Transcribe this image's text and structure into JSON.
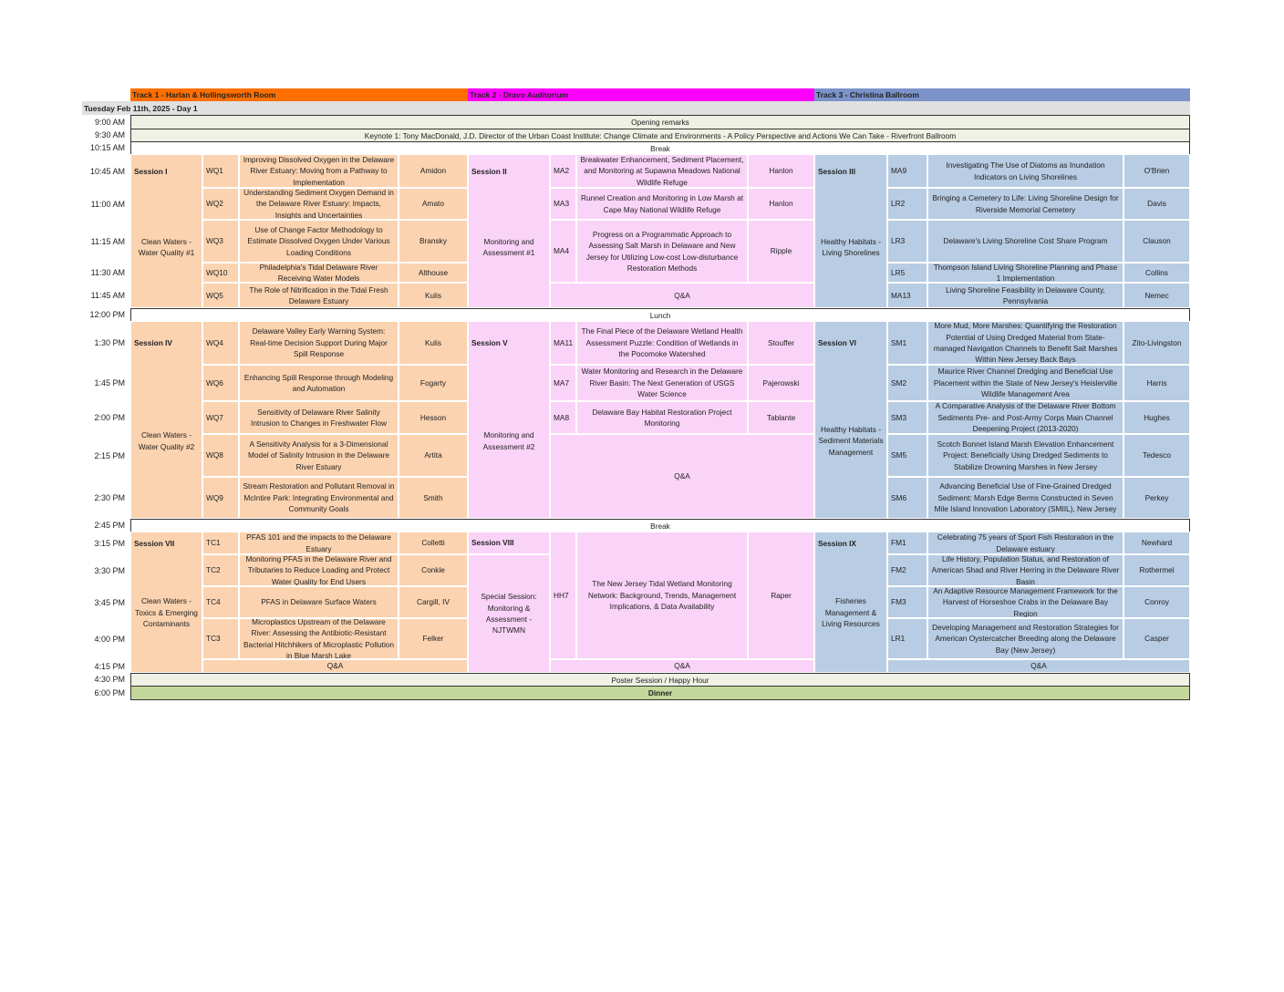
{
  "tracks": [
    {
      "label": "Track 1 - Harlan & Hollingsworth Room",
      "color": "#ff6f00"
    },
    {
      "label": "Track 2  - Dravo Auditorium",
      "color": "#ff00ff"
    },
    {
      "label": "Track 3 - Christina Ballroom",
      "color": "#7b93c9"
    }
  ],
  "day_label": "Tuesday Feb 11th, 2025 - Day 1",
  "times": [
    "9:00 AM",
    "9:30 AM",
    "10:15 AM",
    "10:45 AM",
    "11:00 AM",
    "11:15 AM",
    "11:30 AM",
    "11:45 AM",
    "12:00 PM",
    "1:30 PM",
    "1:45 PM",
    "2:00 PM",
    "2:15 PM",
    "2:30 PM",
    "2:45 PM",
    "3:15 PM",
    "3:30 PM",
    "3:45 PM",
    "4:00 PM",
    "4:15 PM",
    "4:30 PM",
    "6:00 PM"
  ],
  "plenary": {
    "opening": "Opening remarks",
    "keynote": "Keynote 1: Tony MacDonald, J.D. Director of the Urban Coast Institute: Change Climate and Environments - A Policy Perspective and Actions We Can Take - Riverfront Ballroom",
    "break1": "Break",
    "lunch": "Lunch",
    "break2": "Break",
    "poster": "Poster Session / Happy Hour",
    "dinner": "Dinner"
  },
  "colors": {
    "track1_cell": "#fbd3b0",
    "track2_cell": "#fad3f8",
    "track3_cell": "#b8cce3",
    "opening_bg": "#eef1e4",
    "dinner_bg": "#c4d79b"
  },
  "sessions": [
    {
      "label": "Session I",
      "description": "Clean Waters - Water Quality  #1",
      "talks": [
        {
          "code": "WQ1",
          "title": "Improving Dissolved Oxygen in the Delaware River Estuary: Moving from a Pathway to Implementation",
          "speaker": "Amidon"
        },
        {
          "code": "WQ2",
          "title": "Understanding Sediment Oxygen Demand in the Delaware River Estuary: Impacts, Insights and Uncertainties",
          "speaker": "Amato"
        },
        {
          "code": "WQ3",
          "title": "Use of Change Factor Methodology to Estimate Dissolved Oxygen Under Various Loading Conditions",
          "speaker": "Bransky"
        },
        {
          "code": "WQ10",
          "title": "Philadelphia's Tidal Delaware River Receiving Water Models",
          "speaker": "Althouse"
        },
        {
          "code": "WQ5",
          "title": "The Role of Nitrification in the Tidal Fresh Delaware Estuary",
          "speaker": "Kulis"
        }
      ]
    },
    {
      "label": "Session II",
      "description": "Monitoring and Assessment #1",
      "talks": [
        {
          "code": "MA2",
          "title": "Breakwater Enhancement, Sediment Placement, and Monitoring at Supawna Meadows National Wildlife Refuge",
          "speaker": "Hanlon"
        },
        {
          "code": "MA3",
          "title": "Runnel Creation and Monitoring in Low Marsh at Cape May National Wildlife Refuge",
          "speaker": "Hanlon"
        },
        {
          "code": "MA4",
          "title": "Progress on a Programmatic Approach to Assessing Salt Marsh in Delaware and New Jersey for Utilizing Low-cost Low-disturbance Restoration Methods",
          "speaker": "Ripple"
        }
      ],
      "qa": "Q&A"
    },
    {
      "label": "Session III",
      "description": "Healthy Habitats - Living Shorelines",
      "talks": [
        {
          "code": "MA9",
          "title": "Investigating The Use of Diatoms as Inundation Indicators on Living Shorelines",
          "speaker": "O'Brien"
        },
        {
          "code": "LR2",
          "title": "Bringing a Cemetery to Life: Living Shoreline Design for Riverside Memorial Cemetery",
          "speaker": "Davis"
        },
        {
          "code": "LR3",
          "title": "Delaware's Living Shoreline Cost Share Program",
          "speaker": "Clauson"
        },
        {
          "code": "LR5",
          "title": "Thompson Island Living Shoreline Planning and Phase 1 Implementation",
          "speaker": "Collins"
        },
        {
          "code": "MA13",
          "title": "Living Shoreline Feasibility in Delaware County, Pennsylvania",
          "speaker": "Nemec"
        }
      ]
    },
    {
      "label": "Session IV",
      "description": "Clean Waters - Water Quality  #2",
      "talks": [
        {
          "code": "WQ4",
          "title": "Delaware Valley Early Warning System: Real-time Decision Support During Major Spill Response",
          "speaker": "Kulis"
        },
        {
          "code": "WQ6",
          "title": "Enhancing Spill Response through Modeling and Automation",
          "speaker": "Fogarty"
        },
        {
          "code": "WQ7",
          "title": "Sensitivity of Delaware River Salinity Intrusion to Changes in Freshwater Flow",
          "speaker": "Hesson"
        },
        {
          "code": "WQ8",
          "title": "A Sensitivity Analysis for a 3-Dimensional Model of Salinity Intrusion in the Delaware River Estuary",
          "speaker": "Artita"
        },
        {
          "code": "WQ9",
          "title": "Stream Restoration and Pollutant Removal in McIntire Park: Integrating Environmental and Community Goals",
          "speaker": "Smith"
        }
      ]
    },
    {
      "label": "Session V",
      "description": "Monitoring and Assessment #2",
      "talks": [
        {
          "code": "MA11",
          "title": "The Final Piece of the Delaware Wetland Health Assessment Puzzle: Condition of Wetlands in the Pocomoke Watershed",
          "speaker": "Stouffer"
        },
        {
          "code": "MA7",
          "title": "Water Monitoring and Research in the Delaware River Basin: The Next Generation of USGS Water Science",
          "speaker": "Pajerowski"
        },
        {
          "code": "MA8",
          "title": "Delaware Bay Habitat Restoration Project Monitoring",
          "speaker": "Tablante"
        }
      ],
      "qa": "Q&A"
    },
    {
      "label": "Session VI",
      "description": "Healthy Habitats - Sediment Materials Management",
      "talks": [
        {
          "code": "SM1",
          "title": "More Mud, More Marshes: Quantifying the Restoration Potential of Using Dredged Material from State-managed Navigation Channels to Benefit Salt Marshes Within New Jersey Back Bays",
          "speaker": "Zito-Livingston"
        },
        {
          "code": "SM2",
          "title": "Maurice River Channel Dredging and Beneficial Use Placement within the State of New Jersey's Heislerville Wildlife Management Area",
          "speaker": "Harris"
        },
        {
          "code": "SM3",
          "title": "A Comparative Analysis of the Delaware River Bottom Sediments Pre- and Post-Army Corps Main Channel Deepening Project (2013-2020)",
          "speaker": "Hughes"
        },
        {
          "code": "SM5",
          "title": "Scotch Bonnet Island Marsh Elevation Enhancement Project: Beneficially Using Dredged Sediments to Stabilize Drowning Marshes in New Jersey",
          "speaker": "Tedesco"
        },
        {
          "code": "SM6",
          "title": "Advancing Beneficial Use of Fine-Grained Dredged Sediment: Marsh Edge Berms Constructed in Seven Mile Island Innovation Laboratory (SMIIL), New Jersey",
          "speaker": "Perkey"
        }
      ]
    },
    {
      "label": "Session VII",
      "description": "Clean Waters - Toxics & Emerging Contaminants",
      "talks": [
        {
          "code": "TC1",
          "title": "PFAS 101 and the impacts to the Delaware Estuary",
          "speaker": "Colletti"
        },
        {
          "code": "TC2",
          "title": "Monitoring PFAS in the Delaware River and Tributaries to Reduce Loading and Protect Water Quality for End Users",
          "speaker": "Conkle"
        },
        {
          "code": "TC4",
          "title": "PFAS in Delaware Surface Waters",
          "speaker": "Cargill, IV"
        },
        {
          "code": "TC3",
          "title": "Microplastics Upstream of the Delaware River: Assessing the Antibiotic-Resistant Bacterial Hitchhikers of Microplastic Pollution in Blue Marsh Lake",
          "speaker": "Felker"
        }
      ],
      "qa": "Q&A"
    },
    {
      "label": "Session VIII",
      "description": "Special Session: Monitoring & Assessment - NJTWMN",
      "talks": [
        {
          "code": "HH7",
          "title": "The New Jersey Tidal Wetland Monitoring Network: Background, Trends, Management Implications, & Data Availability",
          "speaker": "Raper"
        }
      ],
      "qa": "Q&A"
    },
    {
      "label": "Session IX",
      "description": "Fisheries Management & Living Resources",
      "talks": [
        {
          "code": "FM1",
          "title": "Celebrating 75 years of Sport Fish Restoration in the Delaware estuary",
          "speaker": "Newhard"
        },
        {
          "code": "FM2",
          "title": "Life History, Population Status, and Restoration of American Shad and River Herring in the Delaware River Basin",
          "speaker": "Rothermel"
        },
        {
          "code": "FM3",
          "title": "An Adaptive Resource Management Framework for the Harvest of Horseshoe Crabs in the Delaware Bay Region",
          "speaker": "Conroy"
        },
        {
          "code": "LR1",
          "title": "Developing Management and Restoration Strategies for American Oystercatcher Breeding along the Delaware Bay (New Jersey)",
          "speaker": "Casper"
        }
      ],
      "qa": "Q&A"
    }
  ]
}
